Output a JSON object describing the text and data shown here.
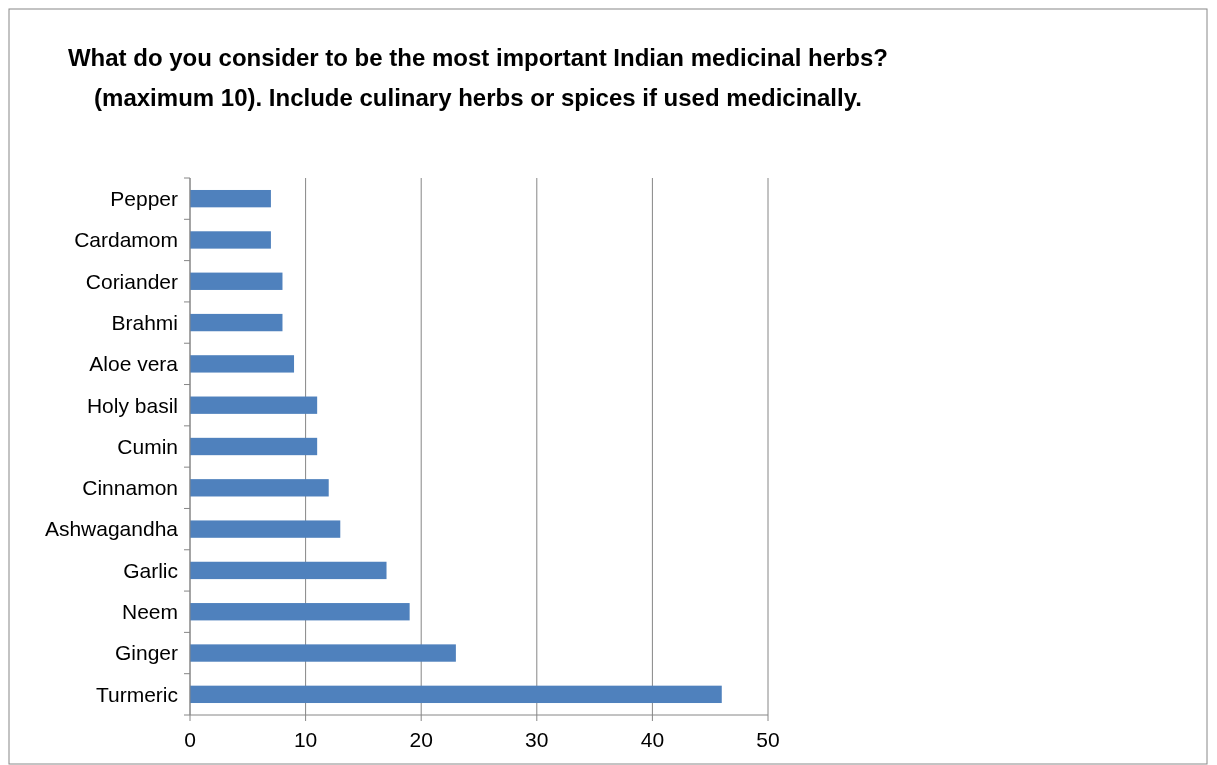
{
  "chart_data": {
    "type": "bar",
    "orientation": "horizontal",
    "title": "What do you consider to be the most important Indian medicinal herbs? (maximum 10). Include culinary herbs or spices if used medicinally.",
    "categories": [
      "Pepper",
      "Cardamom",
      "Coriander",
      "Brahmi",
      "Aloe vera",
      "Holy basil",
      "Cumin",
      "Cinnamon",
      "Ashwagandha",
      "Garlic",
      "Neem",
      "Ginger",
      "Turmeric"
    ],
    "values": [
      7,
      7,
      8,
      8,
      9,
      11,
      11,
      12,
      13,
      17,
      19,
      23,
      46
    ],
    "color": "#4f81bd",
    "xlim": [
      0,
      50
    ],
    "xticks": [
      0,
      10,
      20,
      30,
      40,
      50
    ],
    "grid": "x"
  }
}
